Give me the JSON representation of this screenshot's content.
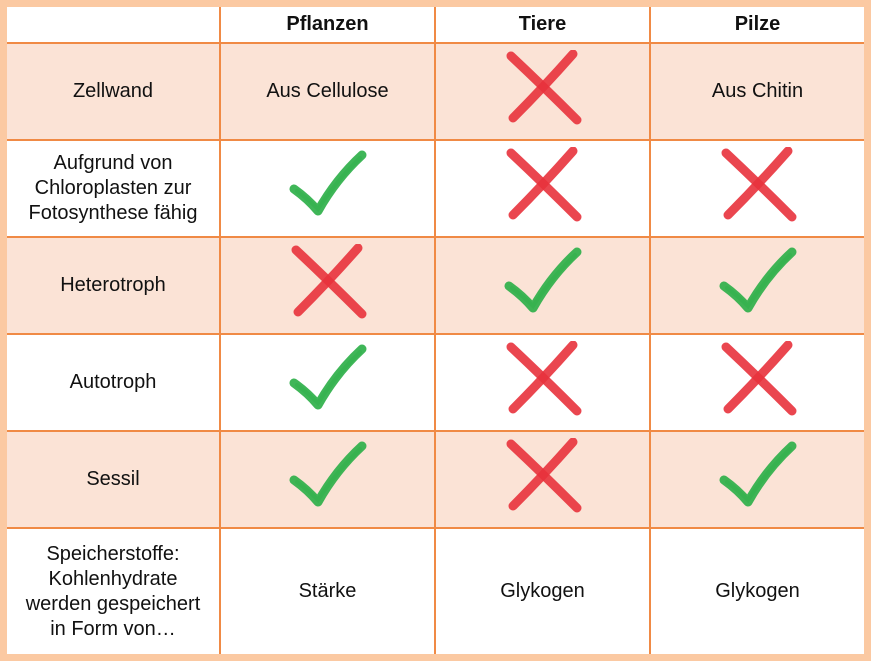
{
  "headers": [
    "",
    "Pflanzen",
    "Tiere",
    "Pilze"
  ],
  "rows": [
    {
      "label": "Zellwand",
      "cells": [
        {
          "type": "text",
          "value": "Aus Cellulose"
        },
        {
          "type": "cross"
        },
        {
          "type": "text",
          "value": "Aus Chitin"
        }
      ]
    },
    {
      "label": "Aufgrund von\nChloroplasten zur\nFotosynthese fähig",
      "cells": [
        {
          "type": "check"
        },
        {
          "type": "cross"
        },
        {
          "type": "cross"
        }
      ]
    },
    {
      "label": "Heterotroph",
      "cells": [
        {
          "type": "cross"
        },
        {
          "type": "check"
        },
        {
          "type": "check"
        }
      ]
    },
    {
      "label": "Autotroph",
      "cells": [
        {
          "type": "check"
        },
        {
          "type": "cross"
        },
        {
          "type": "cross"
        }
      ]
    },
    {
      "label": "Sessil",
      "cells": [
        {
          "type": "check"
        },
        {
          "type": "cross"
        },
        {
          "type": "check"
        }
      ]
    },
    {
      "label": "Speicherstoffe:\nKohlenhydrate\nwerden gespeichert\nin Form von…",
      "cells": [
        {
          "type": "text",
          "value": "Stärke"
        },
        {
          "type": "text",
          "value": "Glykogen"
        },
        {
          "type": "text",
          "value": "Glykogen"
        }
      ]
    }
  ],
  "colors": {
    "check": "#2fb04a",
    "cross": "#e8323c",
    "border": "#f08a45",
    "shade": "#fbe3d6",
    "frame": "#fbc9a2"
  }
}
